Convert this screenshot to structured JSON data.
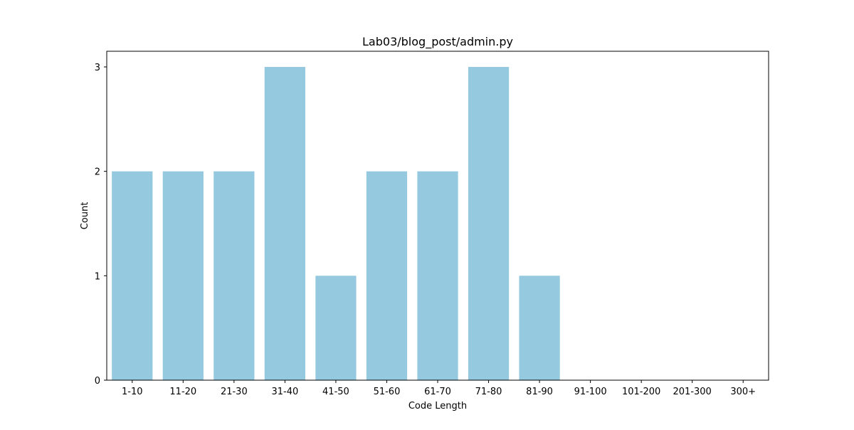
{
  "chart_data": {
    "type": "bar",
    "title": "Lab03/blog_post/admin.py",
    "xlabel": "Code Length",
    "ylabel": "Count",
    "categories": [
      "1-10",
      "11-20",
      "21-30",
      "31-40",
      "41-50",
      "51-60",
      "61-70",
      "71-80",
      "81-90",
      "91-100",
      "101-200",
      "201-300",
      "300+"
    ],
    "values": [
      2,
      2,
      2,
      3,
      1,
      2,
      2,
      3,
      1,
      0,
      0,
      0,
      0
    ],
    "ylim": [
      0,
      3.15
    ],
    "yticks": [
      0,
      1,
      2,
      3
    ],
    "bar_color": "#95c9df",
    "grid": false,
    "legend": false
  }
}
